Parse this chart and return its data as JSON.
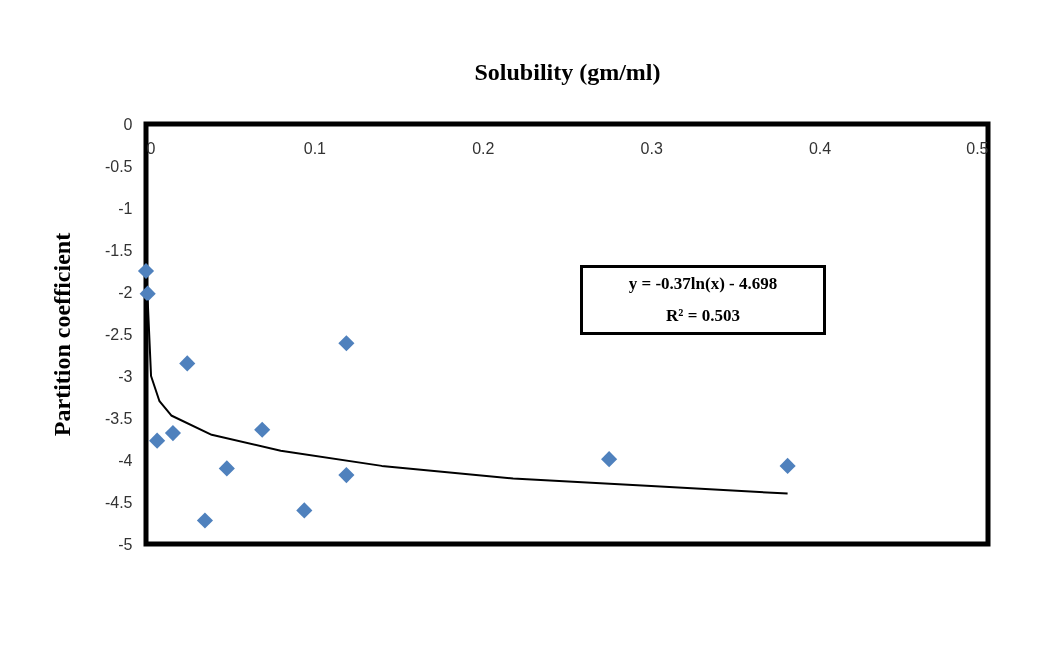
{
  "chart_data": {
    "type": "scatter",
    "xlabel": "Solubility (gm/ml)",
    "ylabel": "Partition coefficient",
    "xlim": [
      0,
      0.5
    ],
    "ylim": [
      -5,
      0
    ],
    "xticks": [
      0,
      0.1,
      0.2,
      0.3,
      0.4,
      0.5
    ],
    "yticks": [
      0,
      -0.5,
      -1,
      -1.5,
      -2,
      -2.5,
      -3,
      -3.5,
      -4,
      -4.5,
      -5
    ],
    "grid": false,
    "annotations": [
      "y = -0.37ln(x)  - 4.698",
      "R² = 0.503"
    ],
    "series": [
      {
        "color": "#4f81bd",
        "marker": "diamond",
        "x": [
          0.0,
          0.001,
          0.0245,
          0.0066,
          0.016,
          0.035,
          0.048,
          0.069,
          0.094,
          0.119,
          0.119,
          0.275,
          0.381
        ],
        "values": [
          -1.75,
          -2.02,
          -2.85,
          -3.77,
          -3.68,
          -4.72,
          -4.1,
          -3.64,
          -4.6,
          -2.61,
          -4.18,
          -3.99,
          -4.07
        ]
      },
      {
        "type": "line",
        "color": "#000000",
        "x": [
          0.001,
          0.003,
          0.008,
          0.015,
          0.039,
          0.08,
          0.14,
          0.218,
          0.3,
          0.381
        ],
        "values": [
          -2.1,
          -3.0,
          -3.3,
          -3.47,
          -3.7,
          -3.89,
          -4.07,
          -4.22,
          -4.31,
          -4.4
        ]
      }
    ]
  }
}
